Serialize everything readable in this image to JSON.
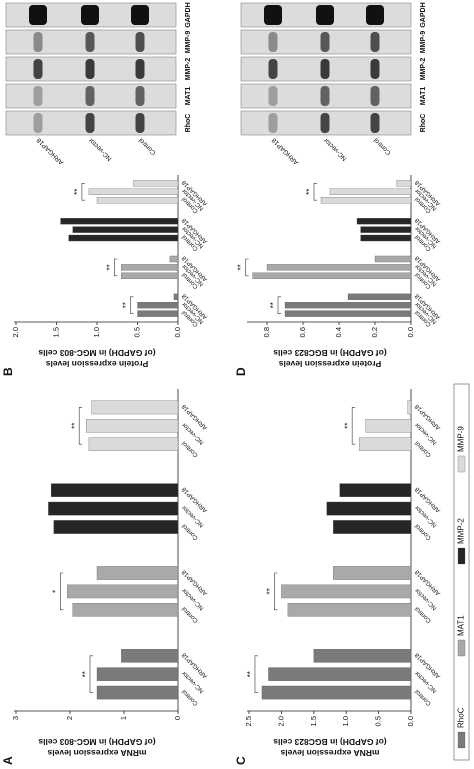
{
  "chart_data": [
    {
      "type": "bar",
      "panel_label": "A",
      "ylabel": [
        "mRNA expression levels",
        "(of GAPDH) in MGC-803 cells"
      ],
      "categories": [
        "Control",
        "NC-vector",
        "ARHGAP18"
      ],
      "series": [
        {
          "name": "RhoC",
          "color": "#7a7a7a",
          "values": [
            1.5,
            1.5,
            1.05
          ],
          "significance": "**"
        },
        {
          "name": "MAT1",
          "color": "#a9a9a9",
          "values": [
            1.95,
            2.05,
            1.5
          ],
          "significance": "*"
        },
        {
          "name": "MMP-2",
          "color": "#262626",
          "values": [
            2.3,
            2.4,
            2.35
          ]
        },
        {
          "name": "MMP-9",
          "color": "#dadada",
          "values": [
            1.65,
            1.7,
            1.6
          ],
          "significance": "**"
        }
      ],
      "ylim": [
        0,
        3
      ],
      "yticks": [
        0,
        1,
        2,
        3
      ]
    },
    {
      "type": "bar",
      "panel_label": "B",
      "ylabel": [
        "Protein expression levels",
        "(of GAPDH) in MGC-803 cells"
      ],
      "categories": [
        "Control",
        "NC-vector",
        "ARHGAP18"
      ],
      "series": [
        {
          "name": "RhoC",
          "color": "#7a7a7a",
          "values": [
            0.5,
            0.5,
            0.05
          ],
          "significance": "**"
        },
        {
          "name": "MAT1",
          "color": "#a9a9a9",
          "values": [
            0.7,
            0.7,
            0.1
          ],
          "significance": "**"
        },
        {
          "name": "MMP-2",
          "color": "#262626",
          "values": [
            1.35,
            1.3,
            1.45
          ]
        },
        {
          "name": "MMP-9",
          "color": "#dadada",
          "values": [
            1.0,
            1.1,
            0.55
          ],
          "significance": "**"
        }
      ],
      "ylim": [
        0,
        2
      ],
      "yticks": [
        {
          "value": 0,
          "label": "0.0"
        },
        0.5,
        {
          "value": 1,
          "label": "1.0"
        },
        1.5,
        {
          "value": 2,
          "label": "2.0"
        }
      ]
    },
    {
      "type": "bar",
      "panel_label": "C",
      "ylabel": [
        "mRNA expression levels",
        "(of GAPDH) in BGC823 cells"
      ],
      "categories": [
        "Control",
        "NC-vector",
        "ARHGAP18"
      ],
      "series": [
        {
          "name": "RhoC",
          "color": "#7a7a7a",
          "values": [
            2.3,
            2.2,
            1.5
          ],
          "significance": "**"
        },
        {
          "name": "MAT1",
          "color": "#a9a9a9",
          "values": [
            1.9,
            2.0,
            1.2
          ],
          "significance": "**"
        },
        {
          "name": "MMP-2",
          "color": "#262626",
          "values": [
            1.2,
            1.3,
            1.1
          ]
        },
        {
          "name": "MMP-9",
          "color": "#dadada",
          "values": [
            0.8,
            0.7,
            0.05
          ],
          "significance": "**"
        }
      ],
      "ylim": [
        0,
        2.5
      ],
      "yticks": [
        {
          "value": 0,
          "label": "0.0"
        },
        0.5,
        {
          "value": 1,
          "label": "1.0"
        },
        1.5,
        {
          "value": 2,
          "label": "2.0"
        },
        2.5
      ]
    },
    {
      "type": "bar",
      "panel_label": "D",
      "ylabel": [
        "Protein expression levels",
        "(of GAPDH) in BGC823 cells"
      ],
      "categories": [
        "Control",
        "NC-vector",
        "ARHGAP18"
      ],
      "series": [
        {
          "name": "RhoC",
          "color": "#7a7a7a",
          "values": [
            0.7,
            0.7,
            0.35
          ],
          "significance": "**"
        },
        {
          "name": "MAT1",
          "color": "#a9a9a9",
          "values": [
            0.88,
            0.8,
            0.2
          ],
          "significance": "**"
        },
        {
          "name": "MMP-2",
          "color": "#262626",
          "values": [
            0.28,
            0.28,
            0.3
          ]
        },
        {
          "name": "MMP-9",
          "color": "#dadada",
          "values": [
            0.5,
            0.45,
            0.08
          ],
          "significance": "**"
        }
      ],
      "ylim": [
        0,
        0.9
      ],
      "yticks": [
        {
          "value": 0,
          "label": "0.0"
        },
        0.2,
        0.4,
        0.6,
        0.8
      ]
    }
  ],
  "blots": [
    {
      "lanes": [
        "Control",
        "NC-vector",
        "ARHGAP18"
      ],
      "proteins": [
        "RhoC",
        "MAT1",
        "MMP-2",
        "MMP-9",
        "GAPDH"
      ]
    },
    {
      "lanes": [
        "Control",
        "NC-vector",
        "ARHGAP18"
      ],
      "proteins": [
        "RhoC",
        "MAT1",
        "MMP-2",
        "MMP-9",
        "GAPDH"
      ]
    }
  ]
}
